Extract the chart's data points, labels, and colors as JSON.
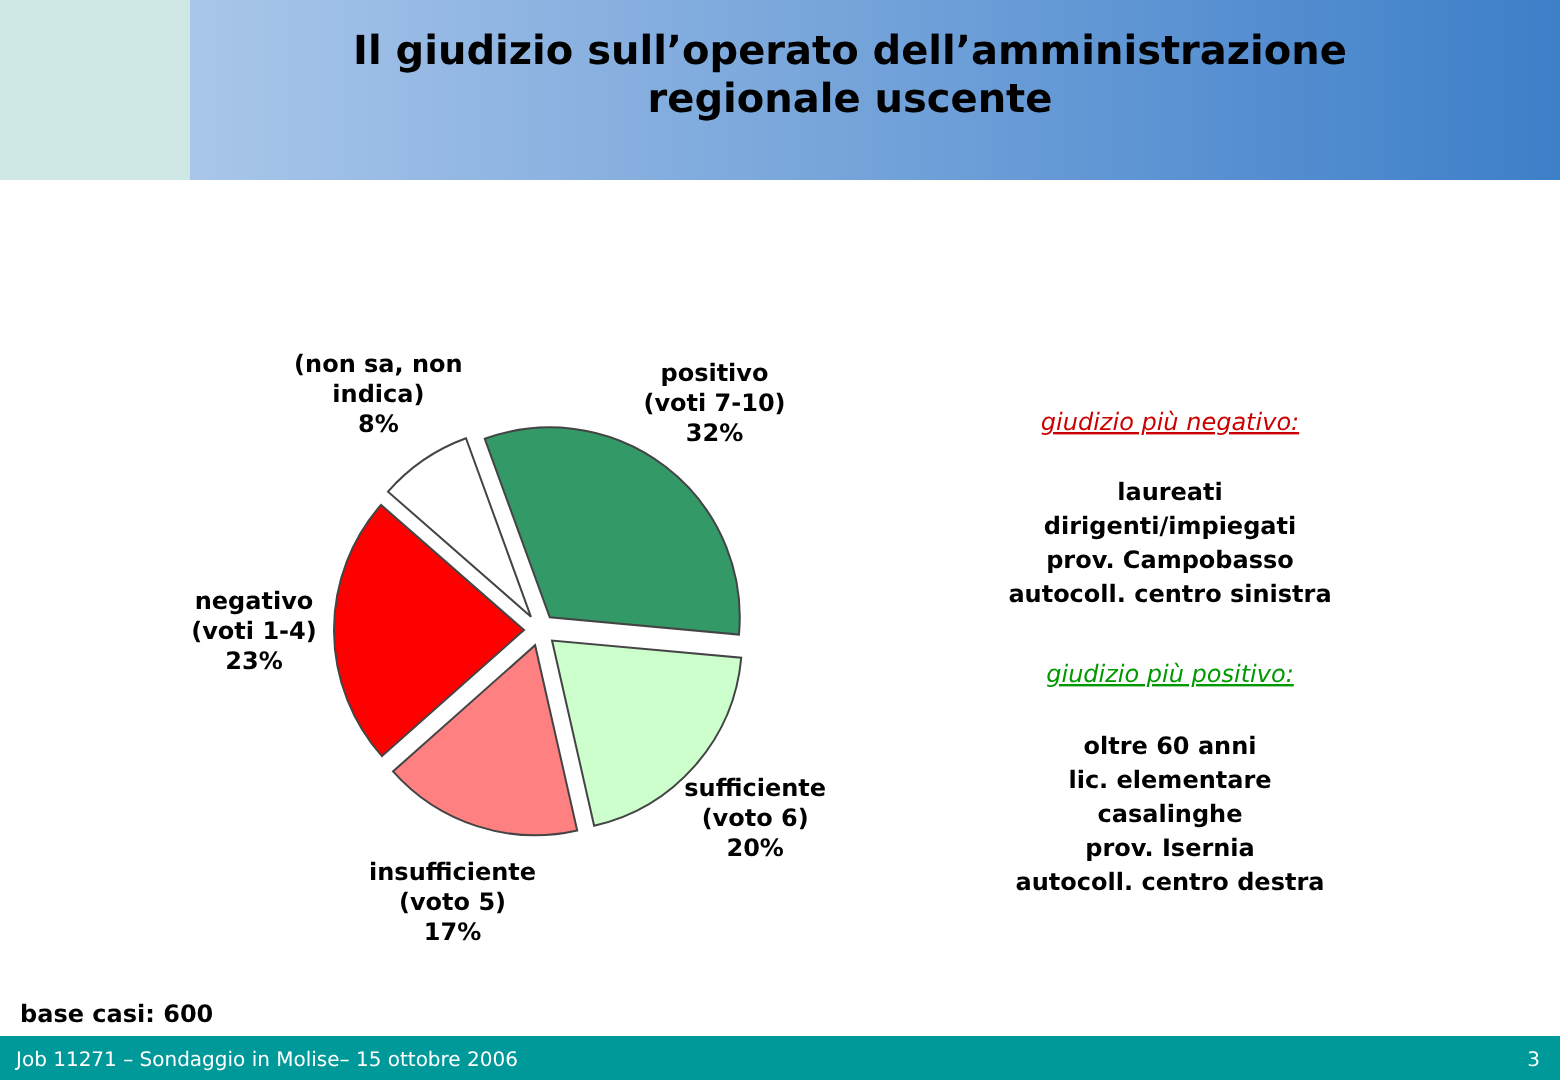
{
  "chart_data": {
    "type": "pie",
    "title": "Il giudizio sull’operato dell’amministrazione\nregionale uscente",
    "categories": [
      "positivo\n(voti 7-10)",
      "sufficiente\n(voto 6)",
      "insufficiente\n(voto 5)",
      "negativo\n(voti 1-4)",
      "(non sa, non\nindica)"
    ],
    "values": [
      32,
      20,
      17,
      23,
      8
    ],
    "colors": [
      "#339966",
      "#ccffcc",
      "#ff8080",
      "#ff0000",
      "#ffffff"
    ],
    "value_labels": [
      "32%",
      "20%",
      "17%",
      "23%",
      "8%"
    ],
    "annotations": [
      "giudizio più negativo:",
      "laureati\ndirigenti/impiegati\nprov. Campobasso\nautocoll. centro sinistra",
      "giudizio più positivo:",
      "oltre 60 anni\nlic. elementare\ncasalinghe\nprov. Isernia\nautocoll. centro destra",
      "base casi: 600",
      "Job 11271 – Sondaggio in Molise– 15 ottobre 2006",
      "3"
    ]
  }
}
